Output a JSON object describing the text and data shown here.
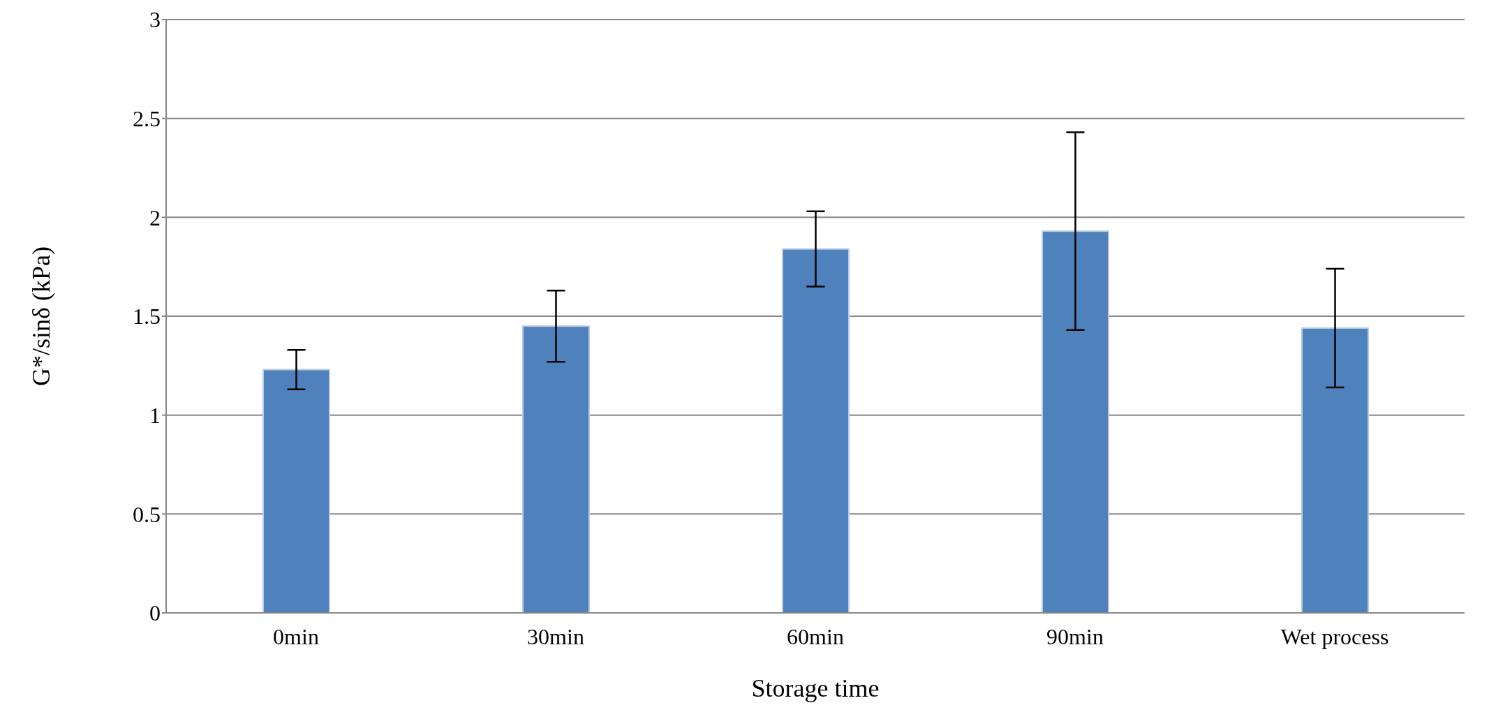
{
  "chart_data": {
    "type": "bar",
    "xlabel": "Storage time",
    "ylabel": "G*/sinδ (kPa)",
    "categories": [
      "0min",
      "30min",
      "60min",
      "90min",
      "Wet process"
    ],
    "values": [
      1.23,
      1.45,
      1.84,
      1.93,
      1.44
    ],
    "errors": [
      0.1,
      0.18,
      0.19,
      0.5,
      0.3
    ],
    "color": "#4f81bd",
    "ylim": [
      0,
      3
    ],
    "yticks": [
      0,
      0.5,
      1,
      1.5,
      2,
      2.5,
      3
    ],
    "grid": "y"
  }
}
